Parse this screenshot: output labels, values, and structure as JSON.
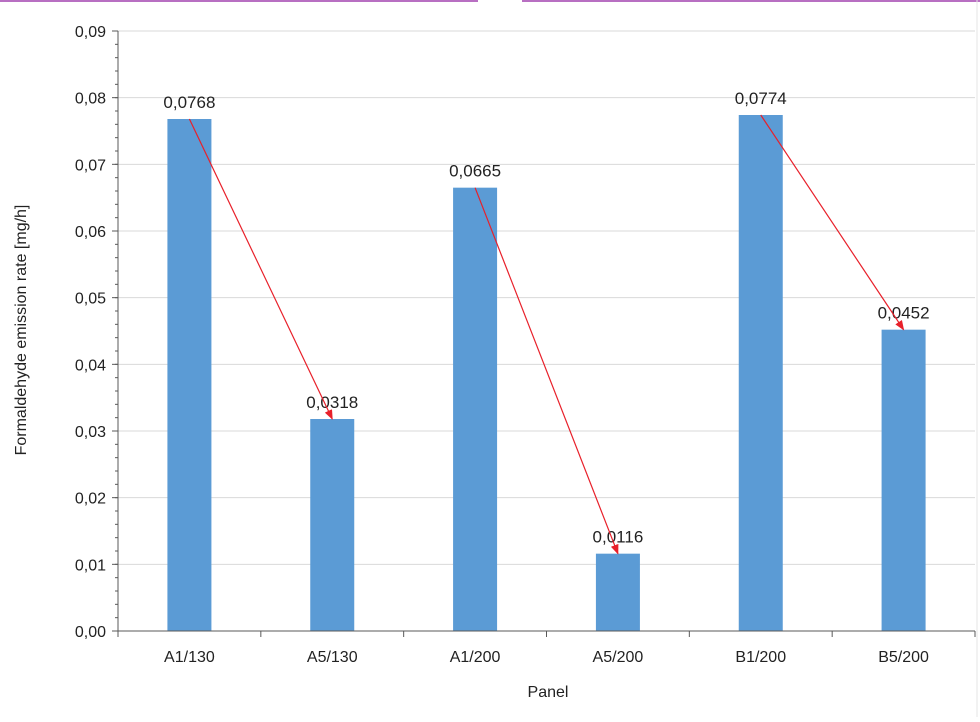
{
  "chart_data": {
    "type": "bar",
    "title": "",
    "xlabel": "Panel",
    "ylabel": "Formaldehyde emission rate [mg/h]",
    "categories": [
      "A1/130",
      "A5/130",
      "A1/200",
      "A5/200",
      "B1/200",
      "B5/200"
    ],
    "values": [
      0.0768,
      0.0318,
      0.0665,
      0.0116,
      0.0774,
      0.0452
    ],
    "data_labels": [
      "0,0768",
      "0,0318",
      "0,0665",
      "0,0116",
      "0,0774",
      "0,0452"
    ],
    "ylim": [
      0,
      0.09
    ],
    "yticks": [
      0,
      0.01,
      0.02,
      0.03,
      0.04,
      0.05,
      0.06,
      0.07,
      0.08,
      0.09
    ],
    "ytick_labels": [
      "0,00",
      "0,01",
      "0,02",
      "0,03",
      "0,04",
      "0,05",
      "0,06",
      "0,07",
      "0,08",
      "0,09"
    ],
    "grid": true,
    "annotations": [
      {
        "type": "arrow",
        "from": "A1/130",
        "to": "A5/130"
      },
      {
        "type": "arrow",
        "from": "A1/200",
        "to": "A5/200"
      },
      {
        "type": "arrow",
        "from": "B1/200",
        "to": "B5/200"
      }
    ],
    "colors": {
      "bar": "#5b9bd5",
      "grid": "#d9d9d9",
      "axis": "#595959",
      "arrow": "#e8202a",
      "frame_accent": "#b86fc2"
    }
  }
}
